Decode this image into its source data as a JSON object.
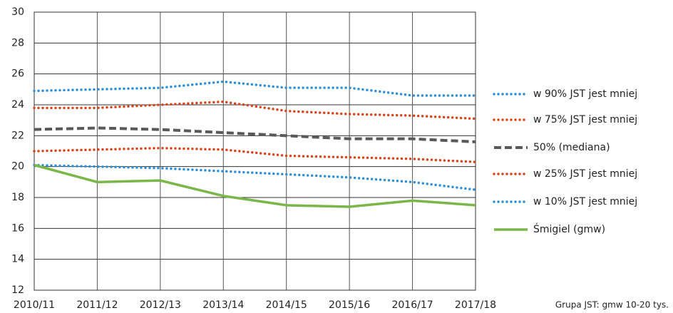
{
  "chart_data": {
    "type": "line",
    "categories": [
      "2010/11",
      "2011/12",
      "2012/13",
      "2013/14",
      "2014/15",
      "2015/16",
      "2016/17",
      "2017/18"
    ],
    "series": [
      {
        "name": "w 90% JST jest mniej",
        "color": "#2e8fd6",
        "style": "dotted",
        "values": [
          24.9,
          25.0,
          25.1,
          25.5,
          25.1,
          25.1,
          24.6,
          24.6
        ]
      },
      {
        "name": "w 75% JST jest mniej",
        "color": "#d9441c",
        "style": "dotted",
        "values": [
          23.8,
          23.8,
          24.0,
          24.2,
          23.6,
          23.4,
          23.3,
          23.1
        ]
      },
      {
        "name": "50% (mediana)",
        "color": "#595959",
        "style": "dashed",
        "values": [
          22.4,
          22.5,
          22.4,
          22.2,
          22.0,
          21.8,
          21.8,
          21.6
        ]
      },
      {
        "name": "w 25% JST jest mniej",
        "color": "#d9441c",
        "style": "dotted",
        "values": [
          21.0,
          21.1,
          21.2,
          21.1,
          20.7,
          20.6,
          20.5,
          20.3
        ]
      },
      {
        "name": "w 10% JST jest mniej",
        "color": "#2e8fd6",
        "style": "dotted",
        "values": [
          20.1,
          20.0,
          19.9,
          19.7,
          19.5,
          19.3,
          19.0,
          18.5
        ]
      },
      {
        "name": "Śmigiel (gmw)",
        "color": "#7ab648",
        "style": "solid",
        "values": [
          20.1,
          19.0,
          19.1,
          18.1,
          17.5,
          17.4,
          17.8,
          17.5
        ]
      }
    ],
    "ylim": [
      12,
      30
    ],
    "yticks": [
      12,
      14,
      16,
      18,
      20,
      22,
      24,
      26,
      28,
      30
    ],
    "grid": true,
    "legend": "right",
    "annotation": "Grupa JST: gmw 10-20 tys."
  }
}
